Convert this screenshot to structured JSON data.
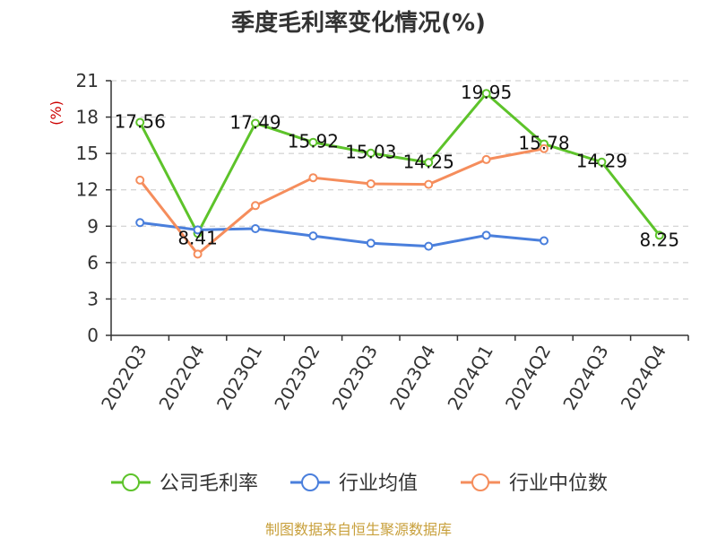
{
  "chart_data": {
    "type": "line",
    "title": "季度毛利率变化情况(%)",
    "y_unit": "(%)",
    "categories": [
      "2022Q3",
      "2022Q4",
      "2023Q1",
      "2023Q2",
      "2023Q3",
      "2023Q4",
      "2024Q1",
      "2024Q2",
      "2024Q3",
      "2024Q4"
    ],
    "ylim": [
      0,
      21
    ],
    "yticks": [
      0,
      3,
      6,
      9,
      12,
      15,
      18,
      21
    ],
    "grid": true,
    "legend_position": "bottom",
    "series": [
      {
        "name": "公司毛利率",
        "color": "#5dc32a",
        "values": [
          17.56,
          8.41,
          17.49,
          15.92,
          15.03,
          14.25,
          19.95,
          15.78,
          14.29,
          8.25
        ],
        "labels": [
          "17.56",
          "8.41",
          "17.49",
          "15.92",
          "15.03",
          "14.25",
          "19.95",
          "15.78",
          "14.29",
          "8.25"
        ]
      },
      {
        "name": "行业均值",
        "color": "#4a7fdc",
        "values": [
          9.3,
          8.7,
          8.8,
          8.2,
          7.6,
          7.35,
          8.25,
          7.8,
          null,
          null
        ]
      },
      {
        "name": "行业中位数",
        "color": "#f58d5c",
        "values": [
          12.8,
          6.7,
          10.7,
          13.0,
          12.5,
          12.45,
          14.5,
          15.4,
          null,
          null
        ]
      }
    ]
  },
  "source": "制图数据来自恒生聚源数据库"
}
